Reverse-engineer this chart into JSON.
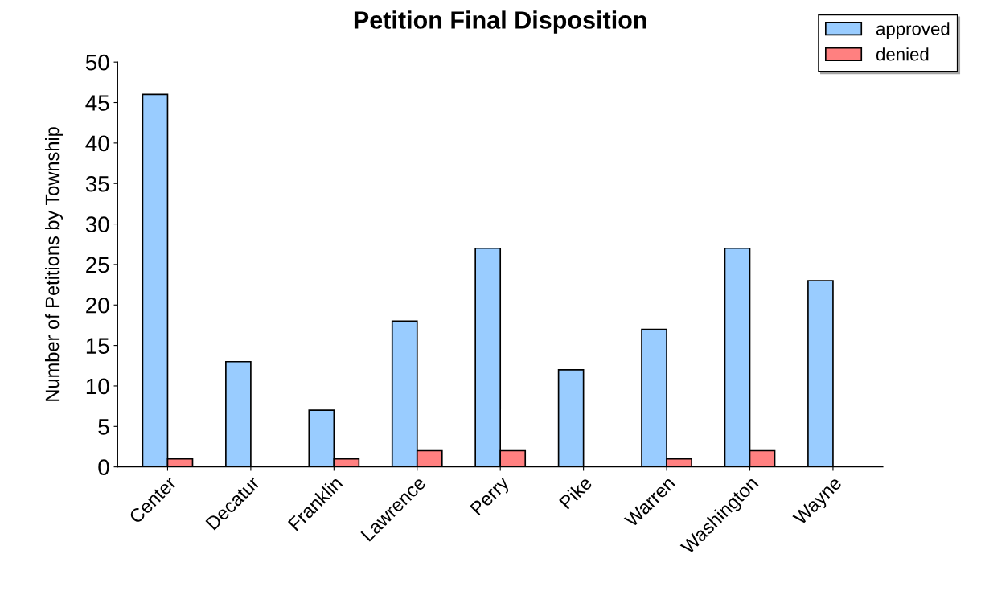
{
  "chart_data": {
    "type": "bar",
    "title": "Petition Final Disposition",
    "ylabel": "Number of Petitions by Township",
    "categories": [
      "Center",
      "Decatur",
      "Franklin",
      "Lawrence",
      "Perry",
      "Pike",
      "Warren",
      "Washington",
      "Wayne"
    ],
    "series": [
      {
        "name": "approved",
        "color": "#99ccff",
        "values": [
          46,
          13,
          7,
          18,
          27,
          12,
          17,
          27,
          23
        ]
      },
      {
        "name": "denied",
        "color": "#ff8080",
        "values": [
          1,
          0,
          1,
          2,
          2,
          0,
          1,
          2,
          0
        ]
      }
    ],
    "ylim": [
      0,
      50
    ],
    "yticks": [
      0,
      5,
      10,
      15,
      20,
      25,
      30,
      35,
      40,
      45,
      50
    ],
    "grid": false,
    "legend": "top right"
  }
}
